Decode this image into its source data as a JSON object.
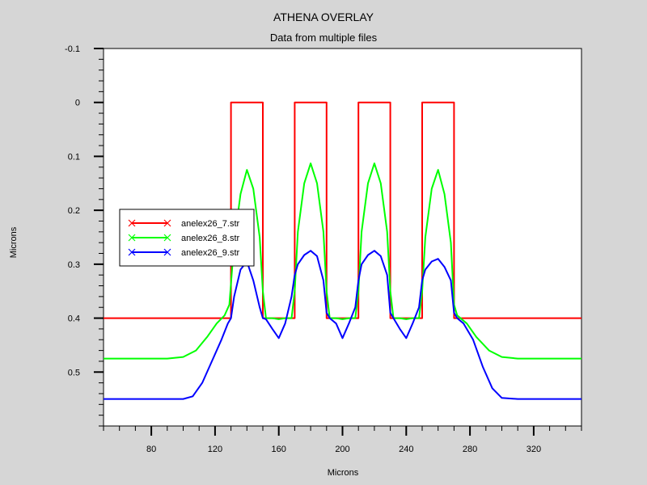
{
  "chart_data": {
    "type": "line",
    "title": "ATHENA OVERLAY",
    "subtitle": "Data from multiple files",
    "xlabel": "Microns",
    "ylabel": "Microns",
    "xlim": [
      50,
      350
    ],
    "ylim": [
      -0.1,
      0.6
    ],
    "y_inverted": true,
    "x_ticks": [
      80,
      120,
      160,
      200,
      240,
      280,
      320
    ],
    "y_ticks": [
      -0.1,
      0,
      0.1,
      0.2,
      0.3,
      0.4,
      0.5
    ],
    "x_tick_labels": [
      "80",
      "120",
      "160",
      "200",
      "240",
      "280",
      "320"
    ],
    "y_tick_labels": [
      "-0.1",
      "0",
      "0.1",
      "0.2",
      "0.3",
      "0.4",
      "0.5"
    ],
    "grid": false,
    "legend_position": "center-left",
    "series": [
      {
        "name": "anelex26_7.str",
        "color": "#ff0000",
        "x": [
          50,
          130,
          130,
          150,
          150,
          170,
          170,
          190,
          190,
          210,
          210,
          230,
          230,
          250,
          250,
          270,
          270,
          350
        ],
        "y": [
          0.4,
          0.4,
          0,
          0,
          0.4,
          0.4,
          0,
          0,
          0.4,
          0.4,
          0,
          0,
          0.4,
          0.4,
          0,
          0,
          0.4,
          0.4
        ]
      },
      {
        "name": "anelex26_8.str",
        "color": "#00ff00",
        "x": [
          50,
          90,
          100,
          108,
          115,
          121,
          126,
          129,
          132,
          136,
          140,
          144,
          148,
          150,
          152,
          156,
          160,
          164,
          168,
          170,
          172,
          176,
          180,
          184,
          188,
          190,
          192,
          196,
          200,
          204,
          208,
          210,
          212,
          216,
          220,
          224,
          228,
          230,
          232,
          236,
          240,
          244,
          248,
          250,
          252,
          256,
          260,
          264,
          268,
          270,
          272,
          278,
          284,
          292,
          300,
          310,
          350
        ],
        "y": [
          0.475,
          0.475,
          0.472,
          0.46,
          0.435,
          0.41,
          0.395,
          0.375,
          0.26,
          0.17,
          0.125,
          0.16,
          0.25,
          0.35,
          0.4,
          0.4,
          0.402,
          0.4,
          0.4,
          0.35,
          0.24,
          0.15,
          0.113,
          0.15,
          0.24,
          0.35,
          0.4,
          0.4,
          0.402,
          0.4,
          0.4,
          0.35,
          0.24,
          0.15,
          0.113,
          0.15,
          0.24,
          0.35,
          0.4,
          0.4,
          0.402,
          0.4,
          0.4,
          0.35,
          0.25,
          0.16,
          0.125,
          0.17,
          0.26,
          0.375,
          0.395,
          0.41,
          0.435,
          0.46,
          0.472,
          0.475,
          0.475
        ]
      },
      {
        "name": "anelex26_9.str",
        "color": "#0000ff",
        "x": [
          50,
          100,
          106,
          112,
          118,
          124,
          128,
          130,
          132,
          136,
          140,
          144,
          148,
          150,
          152,
          156,
          160,
          164,
          168,
          170,
          172,
          176,
          180,
          184,
          188,
          190,
          192,
          196,
          200,
          204,
          208,
          210,
          212,
          216,
          220,
          224,
          228,
          230,
          232,
          236,
          240,
          244,
          248,
          250,
          252,
          256,
          260,
          264,
          268,
          270,
          272,
          276,
          282,
          288,
          294,
          300,
          310,
          350
        ],
        "y": [
          0.55,
          0.55,
          0.545,
          0.52,
          0.48,
          0.44,
          0.41,
          0.4,
          0.36,
          0.31,
          0.295,
          0.33,
          0.38,
          0.4,
          0.402,
          0.42,
          0.437,
          0.41,
          0.36,
          0.32,
          0.3,
          0.283,
          0.275,
          0.285,
          0.33,
          0.39,
          0.4,
          0.41,
          0.437,
          0.41,
          0.38,
          0.33,
          0.3,
          0.283,
          0.275,
          0.285,
          0.32,
          0.39,
          0.4,
          0.42,
          0.437,
          0.41,
          0.38,
          0.33,
          0.31,
          0.295,
          0.29,
          0.305,
          0.33,
          0.39,
          0.4,
          0.41,
          0.44,
          0.49,
          0.53,
          0.548,
          0.55,
          0.55
        ]
      }
    ]
  }
}
